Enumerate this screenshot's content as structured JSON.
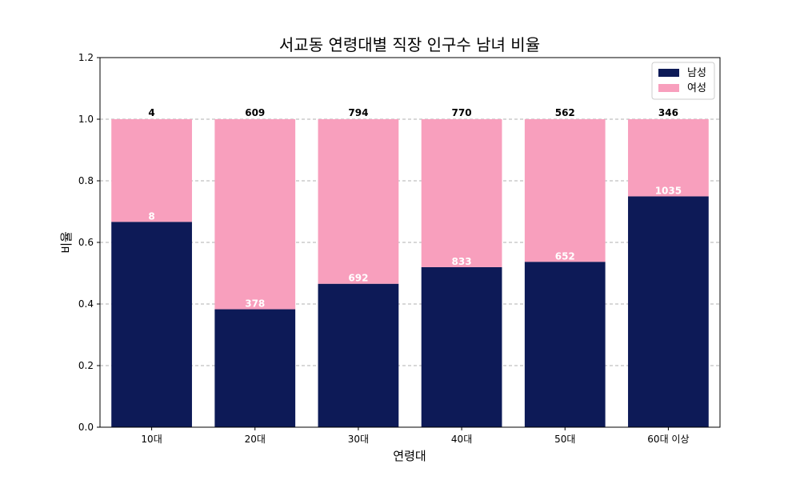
{
  "chart_data": {
    "type": "bar",
    "stacked": true,
    "title": "서교동 연령대별 직장 인구수 남녀 비율",
    "xlabel": "연령대",
    "ylabel": "비율",
    "categories": [
      "10대",
      "20대",
      "30대",
      "40대",
      "50대",
      "60대 이상"
    ],
    "ylim": [
      0,
      1.2
    ],
    "yticks": [
      "0.0",
      "0.2",
      "0.4",
      "0.6",
      "0.8",
      "1.0",
      "1.2"
    ],
    "grid": "y-dashed",
    "legend_position": "top-right",
    "series": [
      {
        "name": "남성",
        "color": "#0d1a57",
        "ratios": [
          0.6667,
          0.383,
          0.4657,
          0.5196,
          0.537,
          0.7495
        ],
        "counts": [
          "8",
          "378",
          "692",
          "833",
          "652",
          "1035"
        ]
      },
      {
        "name": "여성",
        "color": "#f89fbd",
        "ratios": [
          0.3333,
          0.617,
          0.5343,
          0.4804,
          0.463,
          0.2505
        ],
        "counts": [
          "4",
          "609",
          "794",
          "770",
          "562",
          "346"
        ]
      }
    ]
  }
}
